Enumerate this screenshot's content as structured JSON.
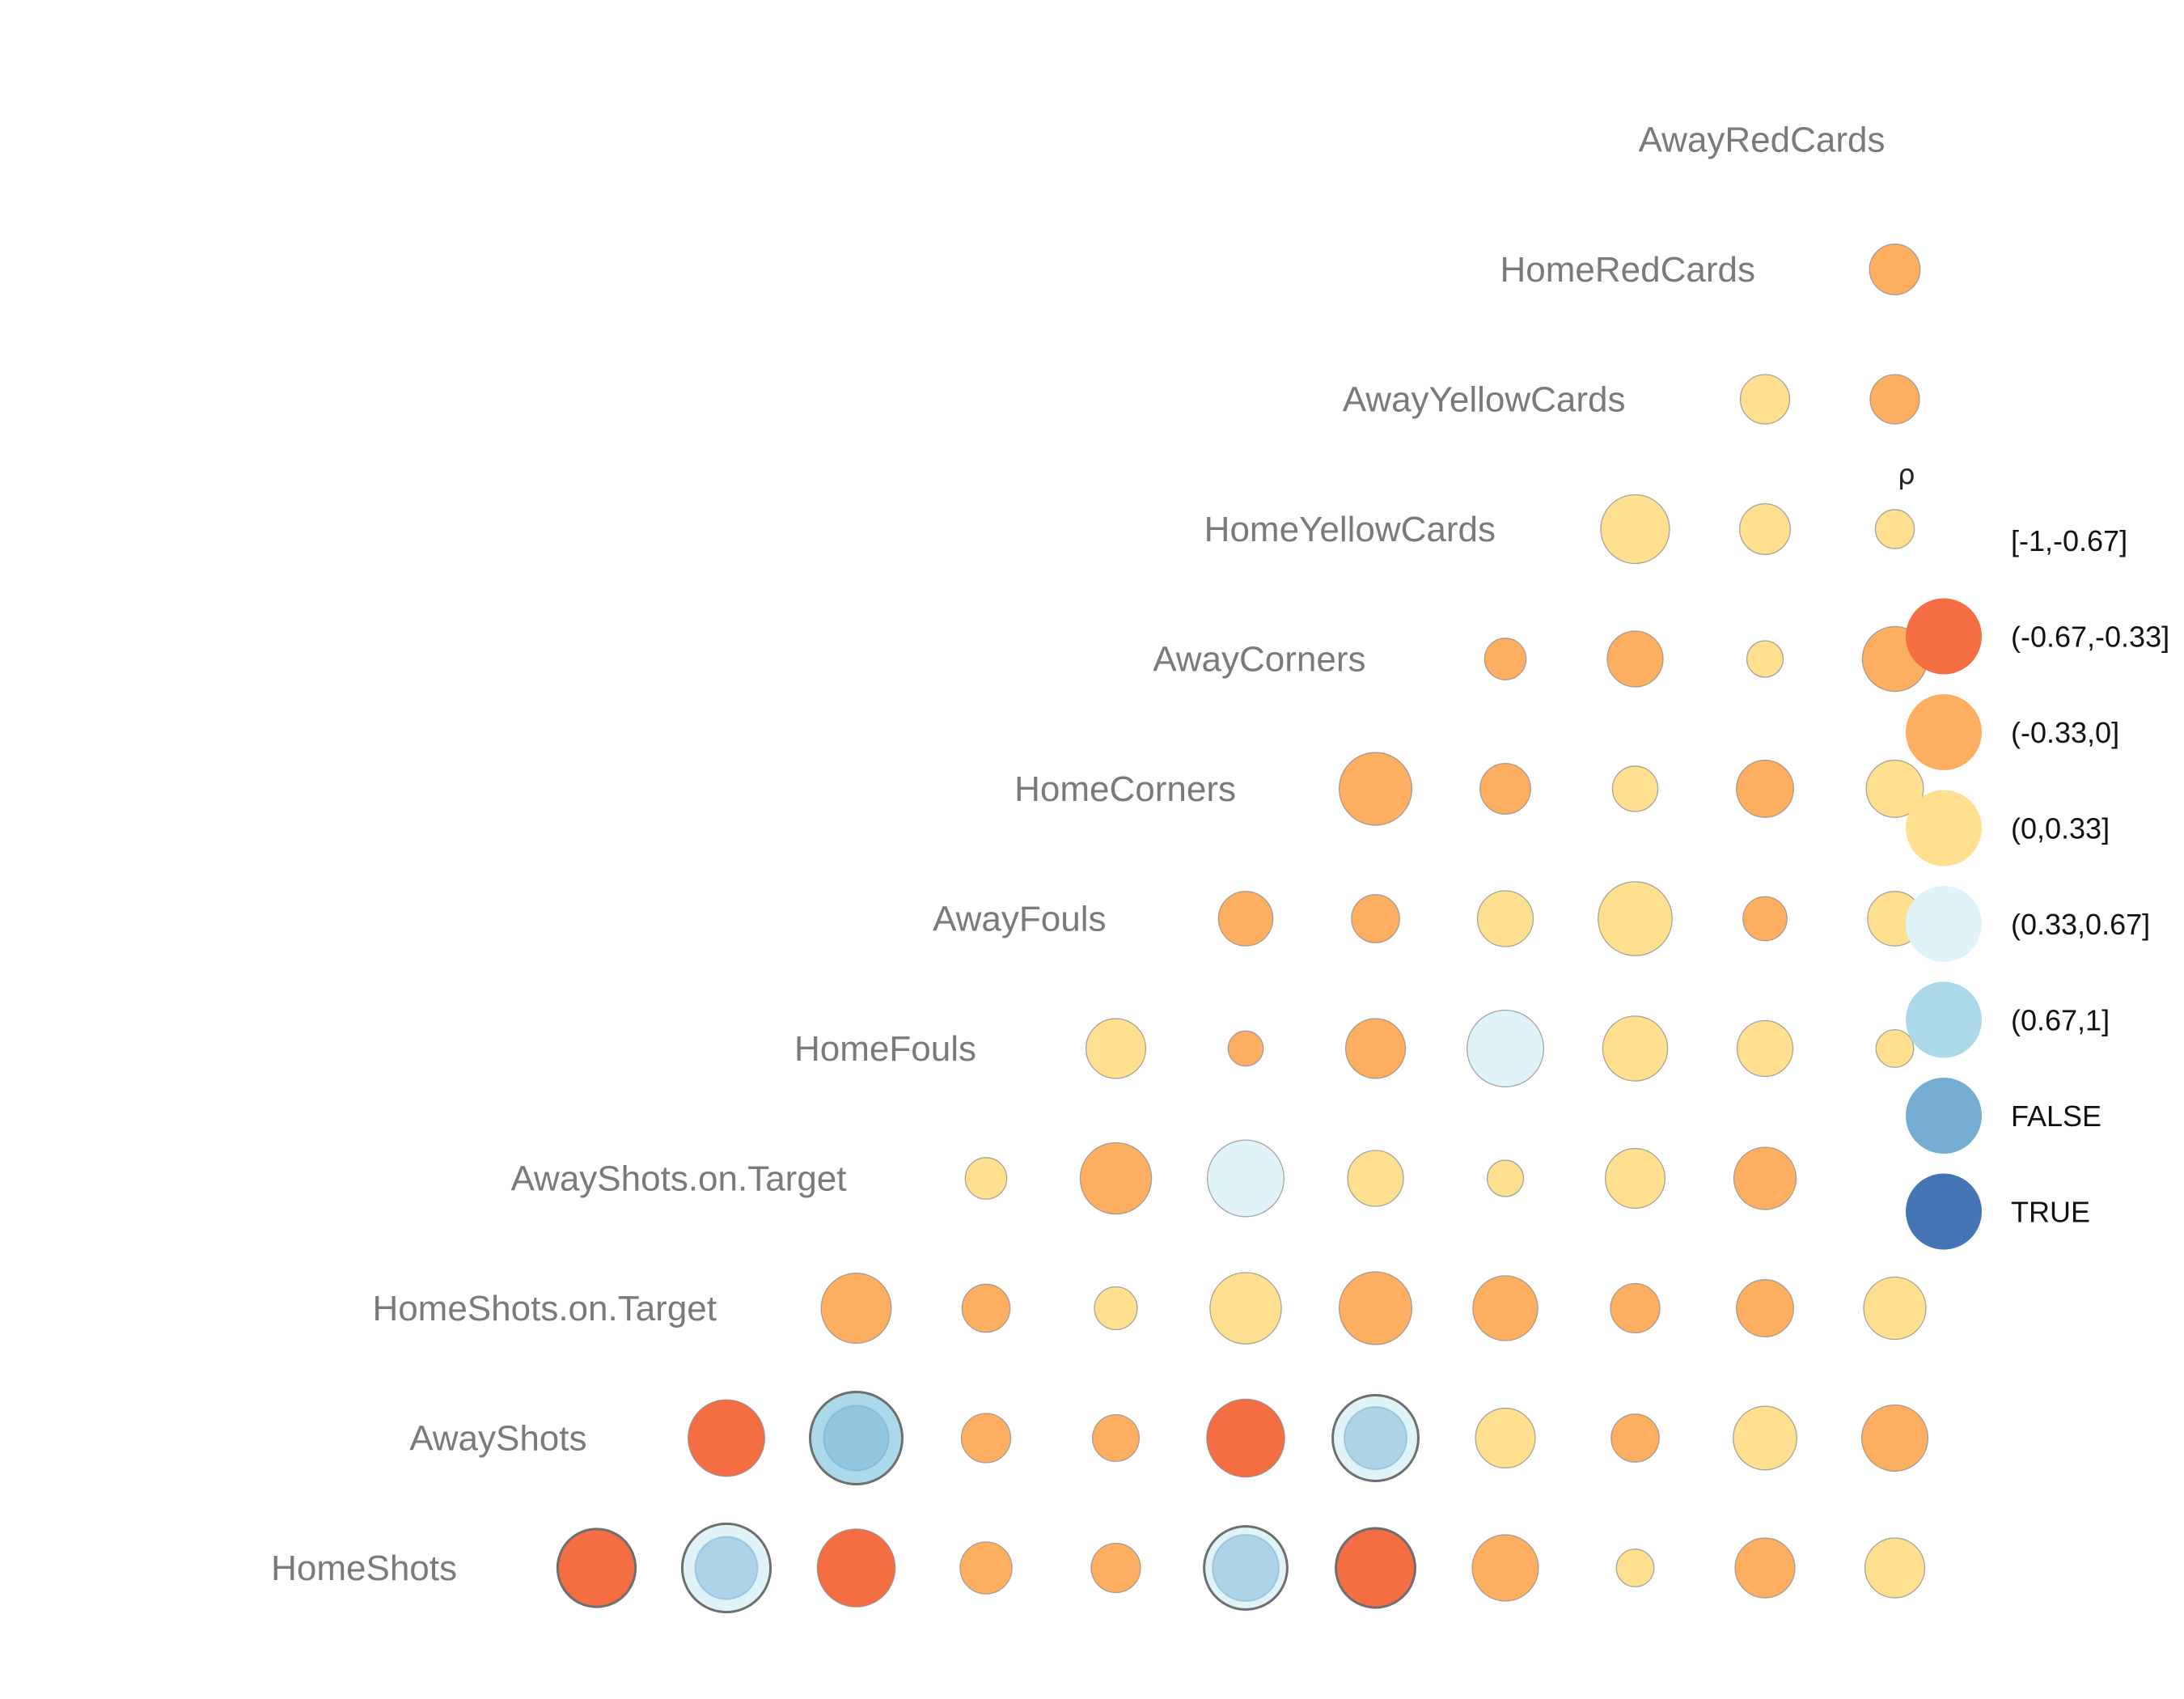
{
  "chart_data": {
    "type": "correlation-bubble-matrix",
    "title": "",
    "variables": [
      "HomeShots",
      "AwayShots",
      "HomeShots.on.Target",
      "AwayShots.on.Target",
      "HomeFouls",
      "AwayFouls",
      "HomeCorners",
      "AwayCorners",
      "HomeYellowCards",
      "AwayYellowCards",
      "HomeRedCards",
      "AwayRedCards"
    ],
    "legend": {
      "title": "ρ",
      "position": "right",
      "entries": [
        {
          "label": "[-1,-0.67]",
          "color": ""
        },
        {
          "label": "(-0.67,-0.33]",
          "color": "#F46D43"
        },
        {
          "label": "(-0.33,0]",
          "color": "#FDAE61"
        },
        {
          "label": "(0,0.33]",
          "color": "#FEE090"
        },
        {
          "label": "(0.33,0.67]",
          "color": "#E0F3F8"
        },
        {
          "label": "(0.67,1]",
          "color": "#ABD9E9"
        },
        {
          "label": "FALSE",
          "color": "#74ADD1"
        },
        {
          "label": "TRUE",
          "color": "#4575B4"
        }
      ]
    },
    "cells": [
      {
        "row": "HomeShots",
        "col": "AwayShots",
        "bin": "(-0.67,-0.33]",
        "size": 0.6,
        "inner": "(-0.67,-0.33]",
        "inner_size": 0.33,
        "outline": true
      },
      {
        "row": "HomeShots",
        "col": "HomeShots.on.Target",
        "bin": "(0.33,0.67]",
        "size": 0.68,
        "inner": "FALSE",
        "inner_size": 0.48,
        "outline": true
      },
      {
        "row": "HomeShots",
        "col": "AwayShots.on.Target",
        "bin": "(-0.67,-0.33]",
        "size": 0.6
      },
      {
        "row": "HomeShots",
        "col": "HomeFouls",
        "bin": "(-0.33,0]",
        "size": 0.4
      },
      {
        "row": "HomeShots",
        "col": "AwayFouls",
        "bin": "(-0.33,0]",
        "size": 0.38
      },
      {
        "row": "HomeShots",
        "col": "HomeCorners",
        "bin": "(0.33,0.67]",
        "size": 0.64,
        "inner": "FALSE",
        "inner_size": 0.51,
        "outline": true
      },
      {
        "row": "HomeShots",
        "col": "AwayCorners",
        "bin": "(-0.67,-0.33]",
        "size": 0.61,
        "outline": true
      },
      {
        "row": "HomeShots",
        "col": "HomeYellowCards",
        "bin": "(-0.33,0]",
        "size": 0.51
      },
      {
        "row": "HomeShots",
        "col": "AwayYellowCards",
        "bin": "(0,0.33]",
        "size": 0.29
      },
      {
        "row": "HomeShots",
        "col": "HomeRedCards",
        "bin": "(-0.33,0]",
        "size": 0.46
      },
      {
        "row": "HomeShots",
        "col": "AwayRedCards",
        "bin": "(0,0.33]",
        "size": 0.46
      },
      {
        "row": "AwayShots",
        "col": "HomeShots.on.Target",
        "bin": "(-0.67,-0.33]",
        "size": 0.59
      },
      {
        "row": "AwayShots",
        "col": "AwayShots.on.Target",
        "bin": "(0.67,1]",
        "size": 0.71,
        "inner": "FALSE",
        "inner_size": 0.5,
        "outline": true
      },
      {
        "row": "AwayShots",
        "col": "HomeFouls",
        "bin": "(-0.33,0]",
        "size": 0.38
      },
      {
        "row": "AwayShots",
        "col": "AwayFouls",
        "bin": "(-0.33,0]",
        "size": 0.36
      },
      {
        "row": "AwayShots",
        "col": "HomeCorners",
        "bin": "(-0.67,-0.33]",
        "size": 0.6
      },
      {
        "row": "AwayShots",
        "col": "AwayCorners",
        "bin": "(0.33,0.67]",
        "size": 0.66,
        "inner": "FALSE",
        "inner_size": 0.48,
        "outline": true
      },
      {
        "row": "AwayShots",
        "col": "HomeYellowCards",
        "bin": "(0,0.33]",
        "size": 0.46
      },
      {
        "row": "AwayShots",
        "col": "AwayYellowCards",
        "bin": "(-0.33,0]",
        "size": 0.37
      },
      {
        "row": "AwayShots",
        "col": "HomeRedCards",
        "bin": "(0,0.33]",
        "size": 0.49
      },
      {
        "row": "AwayShots",
        "col": "AwayRedCards",
        "bin": "(-0.33,0]",
        "size": 0.51
      },
      {
        "row": "HomeShots.on.Target",
        "col": "AwayShots.on.Target",
        "bin": "(-0.33,0]",
        "size": 0.54
      },
      {
        "row": "HomeShots.on.Target",
        "col": "HomeFouls",
        "bin": "(-0.33,0]",
        "size": 0.37
      },
      {
        "row": "HomeShots.on.Target",
        "col": "AwayFouls",
        "bin": "(0,0.33]",
        "size": 0.33
      },
      {
        "row": "HomeShots.on.Target",
        "col": "HomeCorners",
        "bin": "(0,0.33]",
        "size": 0.55
      },
      {
        "row": "HomeShots.on.Target",
        "col": "AwayCorners",
        "bin": "(-0.33,0]",
        "size": 0.56
      },
      {
        "row": "HomeShots.on.Target",
        "col": "HomeYellowCards",
        "bin": "(-0.33,0]",
        "size": 0.5
      },
      {
        "row": "HomeShots.on.Target",
        "col": "AwayYellowCards",
        "bin": "(-0.33,0]",
        "size": 0.38
      },
      {
        "row": "HomeShots.on.Target",
        "col": "HomeRedCards",
        "bin": "(-0.33,0]",
        "size": 0.44
      },
      {
        "row": "HomeShots.on.Target",
        "col": "AwayRedCards",
        "bin": "(0,0.33]",
        "size": 0.48
      },
      {
        "row": "AwayShots.on.Target",
        "col": "HomeFouls",
        "bin": "(0,0.33]",
        "size": 0.32
      },
      {
        "row": "AwayShots.on.Target",
        "col": "AwayFouls",
        "bin": "(-0.33,0]",
        "size": 0.55
      },
      {
        "row": "AwayShots.on.Target",
        "col": "HomeCorners",
        "bin": "(0.33,0.67]",
        "size": 0.59
      },
      {
        "row": "AwayShots.on.Target",
        "col": "AwayCorners",
        "bin": "(0,0.33]",
        "size": 0.43
      },
      {
        "row": "AwayShots.on.Target",
        "col": "HomeYellowCards",
        "bin": "(0,0.33]",
        "size": 0.28
      },
      {
        "row": "AwayShots.on.Target",
        "col": "AwayYellowCards",
        "bin": "(0,0.33]",
        "size": 0.46
      },
      {
        "row": "AwayShots.on.Target",
        "col": "HomeRedCards",
        "bin": "(-0.33,0]",
        "size": 0.48
      },
      {
        "row": "HomeFouls",
        "col": "AwayFouls",
        "bin": "(0,0.33]",
        "size": 0.46
      },
      {
        "row": "HomeFouls",
        "col": "HomeCorners",
        "bin": "(-0.33,0]",
        "size": 0.27
      },
      {
        "row": "HomeFouls",
        "col": "AwayCorners",
        "bin": "(-0.33,0]",
        "size": 0.46
      },
      {
        "row": "HomeFouls",
        "col": "HomeYellowCards",
        "bin": "(0.33,0.67]",
        "size": 0.59
      },
      {
        "row": "HomeFouls",
        "col": "AwayYellowCards",
        "bin": "(0,0.33]",
        "size": 0.5
      },
      {
        "row": "HomeFouls",
        "col": "HomeRedCards",
        "bin": "(0,0.33]",
        "size": 0.43
      },
      {
        "row": "HomeFouls",
        "col": "AwayRedCards",
        "bin": "(0,0.33]",
        "size": 0.29
      },
      {
        "row": "AwayFouls",
        "col": "HomeCorners",
        "bin": "(-0.33,0]",
        "size": 0.42
      },
      {
        "row": "AwayFouls",
        "col": "AwayCorners",
        "bin": "(-0.33,0]",
        "size": 0.37
      },
      {
        "row": "AwayFouls",
        "col": "HomeYellowCards",
        "bin": "(0,0.33]",
        "size": 0.43
      },
      {
        "row": "AwayFouls",
        "col": "AwayYellowCards",
        "bin": "(0,0.33]",
        "size": 0.57
      },
      {
        "row": "AwayFouls",
        "col": "HomeRedCards",
        "bin": "(-0.33,0]",
        "size": 0.34
      },
      {
        "row": "AwayFouls",
        "col": "AwayRedCards",
        "bin": "(0,0.33]",
        "size": 0.42
      },
      {
        "row": "HomeCorners",
        "col": "AwayCorners",
        "bin": "(-0.33,0]",
        "size": 0.56
      },
      {
        "row": "HomeCorners",
        "col": "HomeYellowCards",
        "bin": "(-0.33,0]",
        "size": 0.39
      },
      {
        "row": "HomeCorners",
        "col": "AwayYellowCards",
        "bin": "(0,0.33]",
        "size": 0.35
      },
      {
        "row": "HomeCorners",
        "col": "HomeRedCards",
        "bin": "(-0.33,0]",
        "size": 0.44
      },
      {
        "row": "HomeCorners",
        "col": "AwayRedCards",
        "bin": "(0,0.33]",
        "size": 0.44
      },
      {
        "row": "AwayCorners",
        "col": "HomeYellowCards",
        "bin": "(-0.33,0]",
        "size": 0.32
      },
      {
        "row": "AwayCorners",
        "col": "AwayYellowCards",
        "bin": "(-0.33,0]",
        "size": 0.43
      },
      {
        "row": "AwayCorners",
        "col": "HomeRedCards",
        "bin": "(0,0.33]",
        "size": 0.28
      },
      {
        "row": "AwayCorners",
        "col": "AwayRedCards",
        "bin": "(-0.33,0]",
        "size": 0.5
      },
      {
        "row": "HomeYellowCards",
        "col": "AwayYellowCards",
        "bin": "(0,0.33]",
        "size": 0.53
      },
      {
        "row": "HomeYellowCards",
        "col": "HomeRedCards",
        "bin": "(0,0.33]",
        "size": 0.39
      },
      {
        "row": "HomeYellowCards",
        "col": "AwayRedCards",
        "bin": "(0,0.33]",
        "size": 0.3
      },
      {
        "row": "AwayYellowCards",
        "col": "HomeRedCards",
        "bin": "(0,0.33]",
        "size": 0.38
      },
      {
        "row": "AwayYellowCards",
        "col": "AwayRedCards",
        "bin": "(-0.33,0]",
        "size": 0.38
      },
      {
        "row": "HomeRedCards",
        "col": "AwayRedCards",
        "bin": "(-0.33,0]",
        "size": 0.39
      }
    ]
  }
}
